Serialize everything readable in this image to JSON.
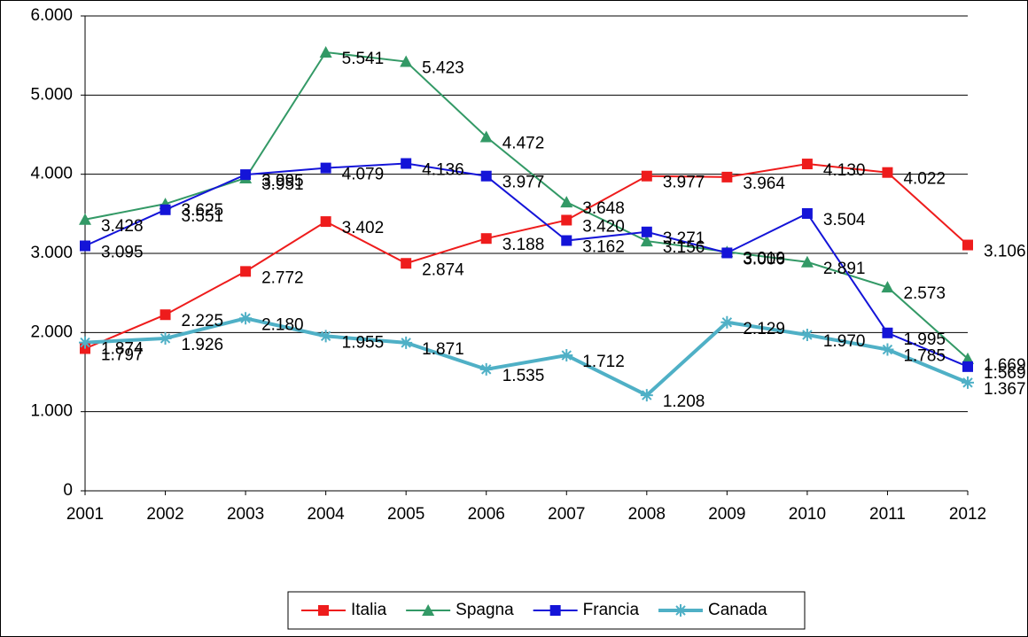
{
  "chart_data": {
    "type": "line",
    "categories": [
      "2001",
      "2002",
      "2003",
      "2004",
      "2005",
      "2006",
      "2007",
      "2008",
      "2009",
      "2010",
      "2011",
      "2012"
    ],
    "ylim": [
      0,
      6000
    ],
    "yticks": [
      0,
      {
        "value": 1000,
        "label": "1.000"
      },
      {
        "value": 2000,
        "label": "2.000"
      },
      {
        "value": 3000,
        "label": "3.000"
      },
      {
        "value": 4000,
        "label": "4.000"
      },
      {
        "value": 5000,
        "label": "5.000"
      },
      {
        "value": 6000,
        "label": "6.000"
      }
    ],
    "grid": true,
    "legend": "bottom",
    "series": [
      {
        "name": "Italia",
        "color": "#ee1c1c",
        "marker": "square",
        "values": [
          1797,
          2225,
          2772,
          3402,
          2874,
          3188,
          3420,
          3977,
          3964,
          4130,
          4022,
          3106
        ],
        "value_labels": [
          "1.797",
          "2.225",
          "2.772",
          "3.402",
          "2.874",
          "3.188",
          "3.420",
          "3.977",
          "3.964",
          "4.130",
          "4.022",
          "3.106"
        ]
      },
      {
        "name": "Spagna",
        "color": "#339966",
        "marker": "triangle",
        "values": [
          3428,
          3625,
          3951,
          5541,
          5423,
          4472,
          3648,
          3156,
          3019,
          2891,
          2573,
          1669
        ],
        "value_labels": [
          "3.428",
          "3.625",
          "3.951",
          "5.541",
          "5.423",
          "4.472",
          "3.648",
          "3.156",
          "3.019",
          "2.891",
          "2.573",
          "1.669"
        ]
      },
      {
        "name": "Francia",
        "color": "#1414d8",
        "marker": "square",
        "values": [
          3095,
          3551,
          3995,
          4079,
          4136,
          3977,
          3162,
          3271,
          3006,
          3504,
          1995,
          1569
        ],
        "value_labels": [
          "3.095",
          "3.551",
          "3.995",
          "4.079",
          "4.136",
          "3.977",
          "3.162",
          "3.271",
          "3.006",
          "3.504",
          "1.995",
          "1.569"
        ]
      },
      {
        "name": "Canada",
        "color": "#4fb0c6",
        "marker": "asterisk",
        "values": [
          1874,
          1926,
          2180,
          1955,
          1871,
          1535,
          1712,
          1208,
          2129,
          1970,
          1785,
          1367
        ],
        "value_labels": [
          "1.874",
          "1.926",
          "2.180",
          "1.955",
          "1.871",
          "1.535",
          "1.712",
          "1.208",
          "2.129",
          "1.970",
          "1.785",
          "1.367"
        ]
      }
    ]
  }
}
